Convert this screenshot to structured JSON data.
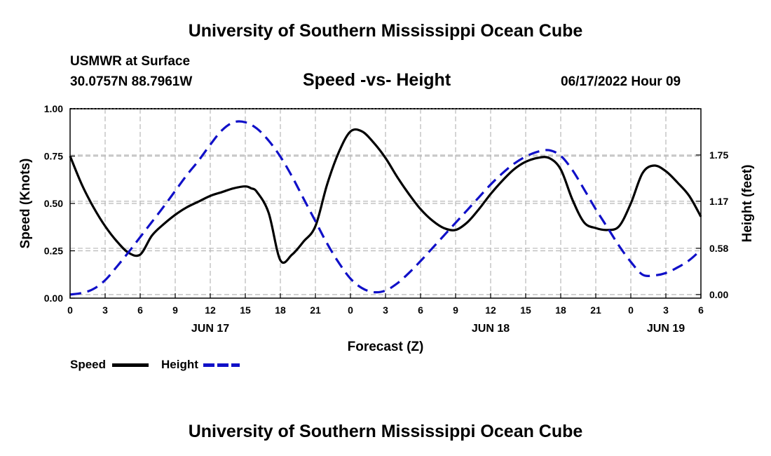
{
  "header": {
    "title": "University of Southern Mississippi Ocean Cube",
    "station": "USMWR at Surface",
    "coords": "30.0757N  88.7961W",
    "subtitle": "Speed -vs- Height",
    "datetime": "06/17/2022 Hour 09"
  },
  "footer": {
    "title": "University of Southern Mississippi Ocean Cube"
  },
  "colors": {
    "speed": "#000000",
    "height": "#1010c8",
    "grid": "#b8b8b8"
  },
  "chart_data": {
    "type": "line",
    "title": "Speed -vs- Height",
    "xlabel": "Forecast (Z)",
    "ylabel_left": "Speed (Knots)",
    "ylabel_right": "Height (feet)",
    "x_unit": "hours since 2022-06-17 00Z",
    "xlim": [
      0,
      54
    ],
    "x_ticks": [
      0,
      3,
      6,
      9,
      12,
      15,
      18,
      21,
      24,
      27,
      30,
      33,
      36,
      39,
      42,
      45,
      48,
      51,
      54
    ],
    "x_tick_labels": [
      "0",
      "3",
      "6",
      "9",
      "12",
      "15",
      "18",
      "21",
      "0",
      "3",
      "6",
      "9",
      "12",
      "15",
      "18",
      "21",
      "0",
      "3",
      "6"
    ],
    "day_labels": [
      {
        "x": 12,
        "label": "JUN 17"
      },
      {
        "x": 36,
        "label": "JUN 18"
      },
      {
        "x": 51,
        "label": "JUN 19"
      }
    ],
    "ylim_left": [
      0,
      1
    ],
    "y_ticks_left": [
      0,
      0.25,
      0.5,
      0.75,
      1.0
    ],
    "y_tick_labels_left": [
      "0.00",
      "0.25",
      "0.50",
      "0.75",
      "1.00"
    ],
    "ylim_right": [
      -0.045,
      2.33
    ],
    "y_ticks_right": [
      0,
      0.58,
      1.17,
      1.75
    ],
    "y_tick_labels_right": [
      "0.00",
      "0.58",
      "1.17",
      "1.75"
    ],
    "grid": true,
    "series": [
      {
        "name": "Speed",
        "axis": "left",
        "style": "solid",
        "x": [
          0,
          1,
          2,
          3,
          4,
          5,
          6,
          7,
          8,
          9,
          10,
          11,
          12,
          13,
          14,
          15,
          15.5,
          16,
          17,
          18,
          19,
          20,
          21,
          22,
          23,
          24,
          25,
          26,
          27,
          28,
          29,
          30,
          31,
          32,
          33,
          34,
          35,
          36,
          37,
          38,
          39,
          40,
          41,
          42,
          43,
          44,
          45,
          46,
          47,
          48,
          49,
          50,
          51,
          52,
          53,
          54
        ],
        "y": [
          0.75,
          0.6,
          0.48,
          0.38,
          0.3,
          0.24,
          0.23,
          0.33,
          0.39,
          0.44,
          0.48,
          0.51,
          0.54,
          0.56,
          0.58,
          0.59,
          0.58,
          0.56,
          0.45,
          0.2,
          0.23,
          0.3,
          0.38,
          0.6,
          0.77,
          0.88,
          0.88,
          0.82,
          0.74,
          0.64,
          0.55,
          0.47,
          0.41,
          0.37,
          0.36,
          0.4,
          0.47,
          0.55,
          0.62,
          0.68,
          0.72,
          0.74,
          0.74,
          0.68,
          0.52,
          0.4,
          0.37,
          0.36,
          0.38,
          0.5,
          0.66,
          0.7,
          0.67,
          0.61,
          0.54,
          0.43
        ]
      },
      {
        "name": "Height",
        "axis": "right",
        "style": "dashed",
        "x": [
          0,
          1,
          2,
          3,
          4,
          5,
          6,
          7,
          8,
          9,
          10,
          11,
          12,
          13,
          14,
          15,
          16,
          17,
          18,
          19,
          20,
          21,
          22,
          23,
          24,
          25,
          26,
          27,
          28,
          29,
          30,
          31,
          32,
          33,
          34,
          35,
          36,
          37,
          38,
          39,
          40,
          41,
          42,
          43,
          44,
          45,
          46,
          47,
          48,
          49,
          50,
          51,
          52,
          53,
          54
        ],
        "y": [
          0.0,
          0.02,
          0.07,
          0.18,
          0.35,
          0.53,
          0.72,
          0.91,
          1.1,
          1.3,
          1.5,
          1.68,
          1.88,
          2.06,
          2.16,
          2.16,
          2.08,
          1.93,
          1.73,
          1.48,
          1.2,
          0.92,
          0.64,
          0.4,
          0.2,
          0.08,
          0.03,
          0.05,
          0.14,
          0.27,
          0.42,
          0.58,
          0.74,
          0.9,
          1.06,
          1.22,
          1.38,
          1.52,
          1.64,
          1.73,
          1.79,
          1.81,
          1.74,
          1.56,
          1.32,
          1.07,
          0.84,
          0.61,
          0.41,
          0.25,
          0.24,
          0.27,
          0.34,
          0.43,
          0.56
        ]
      }
    ]
  },
  "legend": {
    "speed_label": "Speed",
    "height_label": "Height"
  }
}
